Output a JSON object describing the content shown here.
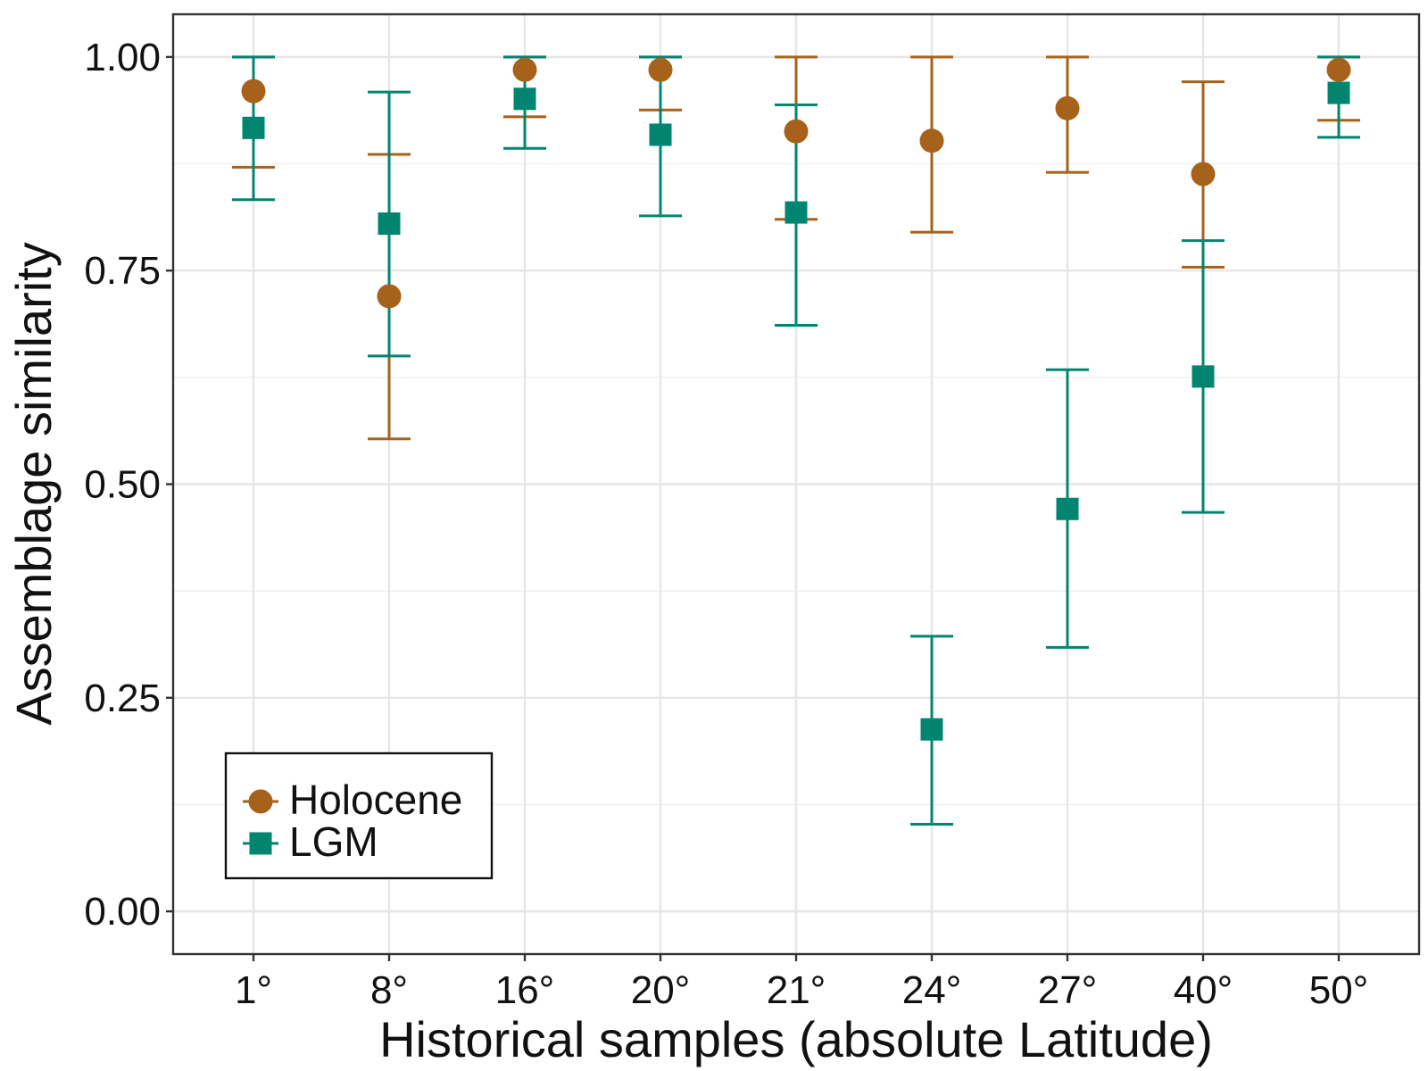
{
  "chart_data": {
    "type": "scatter",
    "xlabel": "Historical samples (absolute Latitude)",
    "ylabel": "Assemblage similarity",
    "categories": [
      "1°",
      "8°",
      "16°",
      "20°",
      "21°",
      "24°",
      "27°",
      "40°",
      "50°"
    ],
    "y_ticks": [
      "0.00",
      "0.25",
      "0.50",
      "0.75",
      "1.00"
    ],
    "ylim": [
      -0.05,
      1.05
    ],
    "grid": true,
    "legend_position": "bottom-left",
    "series": [
      {
        "name": "Holocene",
        "marker": "circle",
        "color": "#A6611A",
        "values": [
          0.96,
          0.72,
          0.985,
          0.985,
          0.913,
          0.902,
          0.94,
          0.863,
          0.985
        ],
        "lower": [
          0.871,
          0.553,
          0.93,
          0.938,
          0.81,
          0.795,
          0.865,
          0.754,
          0.926
        ],
        "upper": [
          1.0,
          0.886,
          1.0,
          1.0,
          1.0,
          1.0,
          1.0,
          0.971,
          1.0
        ]
      },
      {
        "name": "LGM",
        "marker": "square",
        "color": "#018571",
        "values": [
          0.917,
          0.805,
          0.951,
          0.909,
          0.818,
          0.213,
          0.471,
          0.626,
          0.958
        ],
        "lower": [
          0.833,
          0.65,
          0.893,
          0.814,
          0.686,
          0.102,
          0.309,
          0.467,
          0.906
        ],
        "upper": [
          1.0,
          0.959,
          1.0,
          1.0,
          0.944,
          0.322,
          0.634,
          0.785,
          1.0
        ]
      }
    ]
  }
}
